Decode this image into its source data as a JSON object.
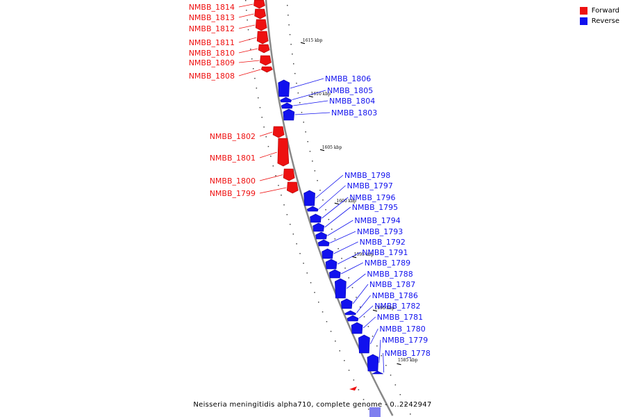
{
  "colors": {
    "forward": "#ee1111",
    "forward_dark": "#aa0000",
    "reverse": "#1111ee",
    "reverse_dark": "#0000aa",
    "backbone": "#888888"
  },
  "legend": [
    {
      "label": "Forward",
      "color": "#ee1111"
    },
    {
      "label": "Reverse",
      "color": "#1111ee"
    }
  ],
  "caption": "Neisseria meningitidis alpha710, complete genome - 0..2242947",
  "kbp_labels": [
    "1615 kbp",
    "1610 kbp",
    "1605 kbp",
    "1600 kbp",
    "1595 kbp",
    "1590 kbp",
    "1585 kbp"
  ],
  "genes_forward": [
    "NMBB_1814",
    "NMBB_1813",
    "NMBB_1812",
    "NMBB_1811",
    "NMBB_1810",
    "NMBB_1809",
    "NMBB_1808",
    "NMBB_1802",
    "NMBB_1801",
    "NMBB_1800",
    "NMBB_1799"
  ],
  "genes_reverse": [
    "NMBB_1806",
    "NMBB_1805",
    "NMBB_1804",
    "NMBB_1803",
    "NMBB_1798",
    "NMBB_1797",
    "NMBB_1796",
    "NMBB_1795",
    "NMBB_1794",
    "NMBB_1793",
    "NMBB_1792",
    "NMBB_1791",
    "NMBB_1789",
    "NMBB_1788",
    "NMBB_1787",
    "NMBB_1786",
    "NMBB_1782",
    "NMBB_1781",
    "NMBB_1780",
    "NMBB_1779",
    "NMBB_1778"
  ]
}
